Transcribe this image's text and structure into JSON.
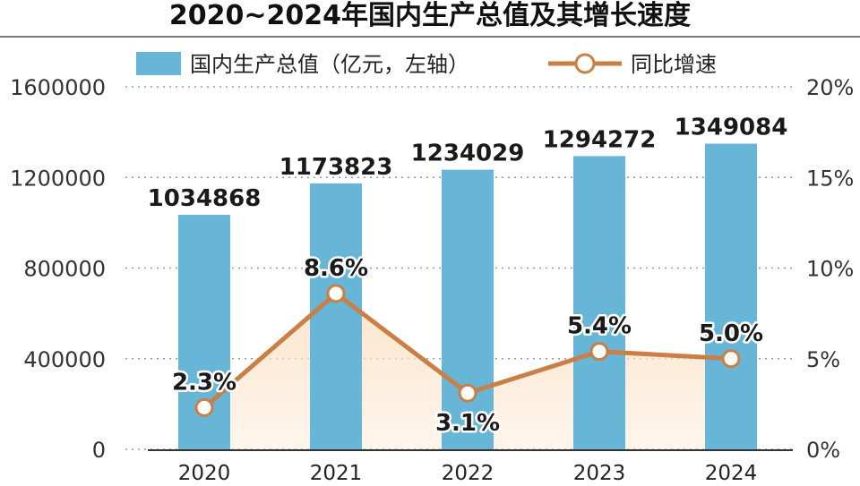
{
  "chart_data": {
    "type": "bar",
    "title": "2020~2024年国内生产总值及其增长速度",
    "categories": [
      "2020",
      "2021",
      "2022",
      "2023",
      "2024"
    ],
    "series": [
      {
        "name": "国内生产总值（亿元，左轴）",
        "type": "bar",
        "axis": "left",
        "values": [
          1034868,
          1173823,
          1234029,
          1294272,
          1349084
        ],
        "labels": [
          "1034868",
          "1173823",
          "1234029",
          "1294272",
          "1349084"
        ],
        "color": "#67b6d8"
      },
      {
        "name": "同比增速",
        "type": "line",
        "axis": "right",
        "values": [
          2.3,
          8.6,
          3.1,
          5.4,
          5.0
        ],
        "labels": [
          "2.3%",
          "8.6%",
          "3.1%",
          "5.4%",
          "5.0%"
        ],
        "color": "#c97f45",
        "area_fill": "#fbe3c8"
      }
    ],
    "y_left": {
      "range": [
        0,
        1600000
      ],
      "ticks": [
        "0",
        "400000",
        "800000",
        "1200000",
        "1600000"
      ]
    },
    "y_right": {
      "range": [
        0,
        20
      ],
      "ticks": [
        "0%",
        "5%",
        "10%",
        "15%",
        "20%"
      ]
    },
    "grid": true,
    "legend_position": "top"
  }
}
